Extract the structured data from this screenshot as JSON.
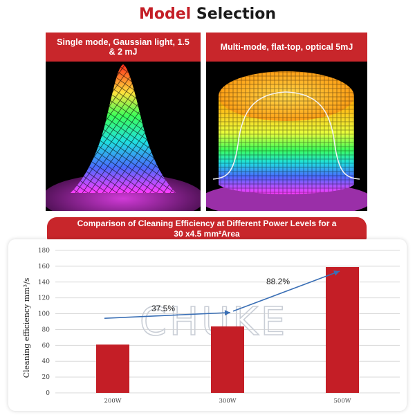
{
  "title": {
    "part1": "Model",
    "part2": "Selection"
  },
  "panels": [
    {
      "heading": "Single mode, Gaussian light, 1.5 & 2 mJ"
    },
    {
      "heading": "Multi-mode, flat-top, optical 5mJ"
    }
  ],
  "chart_banner": {
    "line1": "Comparison of Cleaning Efficiency at Different Power Levels for a",
    "line2": "30 x4.5 mm²Area"
  },
  "watermark": "CHUKE",
  "colors": {
    "accent": "#c8262b",
    "bar": "#c41e26",
    "arrow": "#3a6fb5"
  },
  "chart_data": {
    "type": "bar",
    "categories": [
      "200W",
      "300W",
      "500W"
    ],
    "values": [
      61,
      84,
      159
    ],
    "ylabel": "Cleaning efficiency mm³/s",
    "ylim": [
      0,
      180
    ],
    "yticks": [
      0,
      20,
      40,
      60,
      80,
      100,
      120,
      140,
      160,
      180
    ],
    "grid": true,
    "annotations": [
      "37.5%",
      "88.2%"
    ]
  }
}
